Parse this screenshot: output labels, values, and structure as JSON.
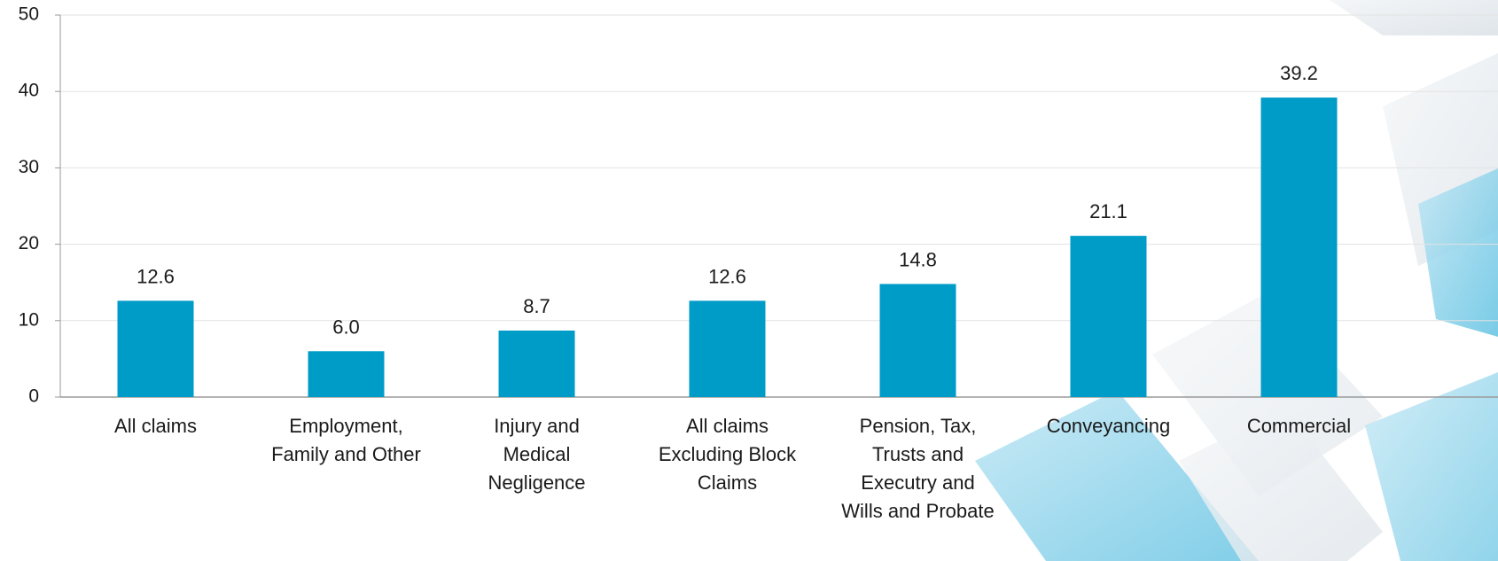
{
  "chart_data": {
    "type": "bar",
    "categories": [
      "All claims",
      "Employment, Family and Other",
      "Injury and Medical Negligence",
      "All claims Excluding Block Claims",
      "Pension, Tax, Trusts and Executry and Wills and Probate",
      "Conveyancing",
      "Commercial"
    ],
    "values": [
      12.6,
      6.0,
      8.7,
      12.6,
      14.8,
      21.1,
      39.2
    ],
    "value_labels": [
      "12.6",
      "6.0",
      "8.7",
      "12.6",
      "14.8",
      "21.1",
      "39.2"
    ],
    "color": "#009cc8",
    "ylim": [
      0,
      50
    ],
    "yticks": [
      0,
      10,
      20,
      30,
      40,
      50
    ],
    "grid": true
  }
}
